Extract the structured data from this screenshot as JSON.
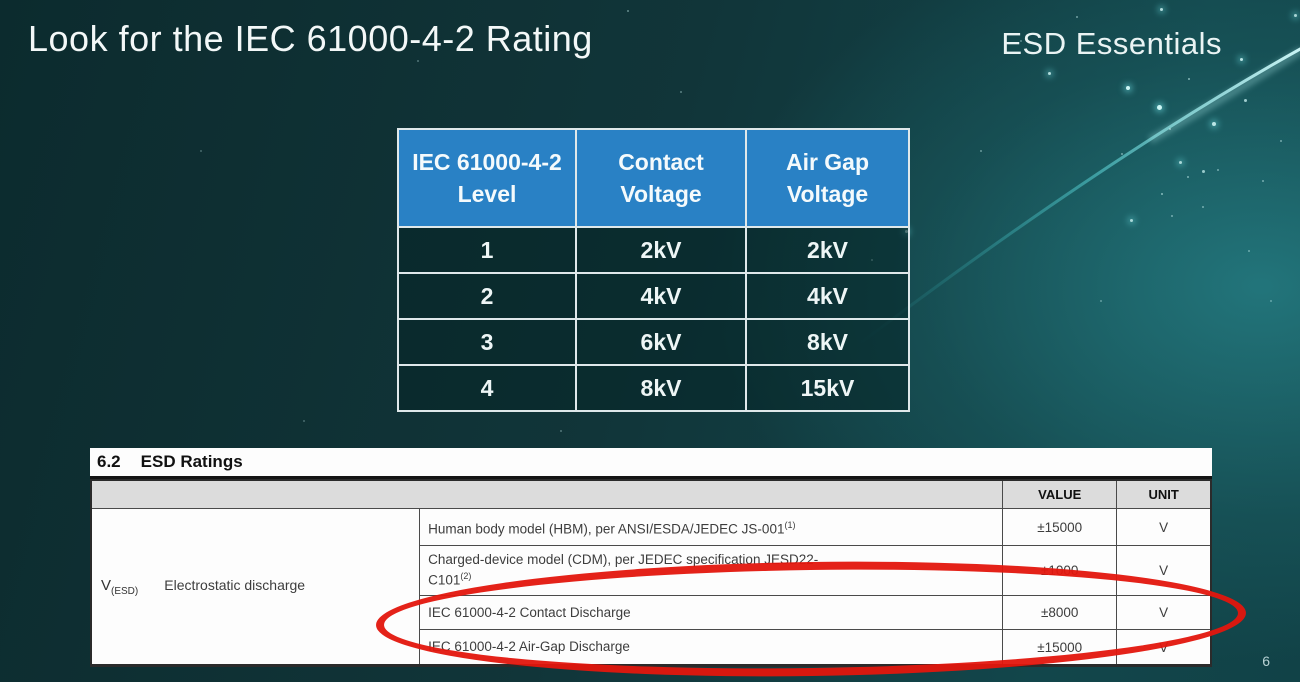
{
  "slide": {
    "title": "Look for the IEC 61000-4-2 Rating",
    "brand": "ESD Essentials",
    "page_number": "6"
  },
  "iec_table": {
    "header_bg": "#2981c5",
    "headers": [
      [
        "IEC 61000-4-2",
        "Level"
      ],
      [
        "Contact",
        "Voltage"
      ],
      [
        "Air Gap",
        "Voltage"
      ]
    ],
    "rows": [
      [
        "1",
        "2kV",
        "2kV"
      ],
      [
        "2",
        "4kV",
        "4kV"
      ],
      [
        "3",
        "6kV",
        "8kV"
      ],
      [
        "4",
        "8kV",
        "15kV"
      ]
    ]
  },
  "datasheet": {
    "section": "6.2",
    "section_title": "ESD Ratings",
    "value_header": "VALUE",
    "unit_header": "UNIT",
    "symbol": "V",
    "symbol_sub": "(ESD)",
    "parameter": "Electrostatic discharge",
    "rows": [
      {
        "desc": "Human body model (HBM), per ANSI/ESDA/JEDEC JS-001",
        "sup": "(1)",
        "value": "±15000",
        "unit": "V"
      },
      {
        "desc": "Charged-device model (CDM), per JEDEC specification JESD22-",
        "desc2": "C101",
        "sup": "(2)",
        "value": "±1000",
        "unit": "V"
      },
      {
        "desc": "IEC 61000-4-2 Contact Discharge",
        "value": "±8000",
        "unit": "V"
      },
      {
        "desc": "IEC 61000-4-2 Air-Gap Discharge",
        "value": "±15000",
        "unit": "V"
      }
    ]
  },
  "colors": {
    "background_dark": "#0c2b2e",
    "background_light": "#1b6468",
    "table_header_blue": "#2981c5",
    "annotation_red": "#e3160d",
    "streak_cyan": "#9ef0f0"
  },
  "icons": {
    "shield": "shield-pulse-icon"
  }
}
